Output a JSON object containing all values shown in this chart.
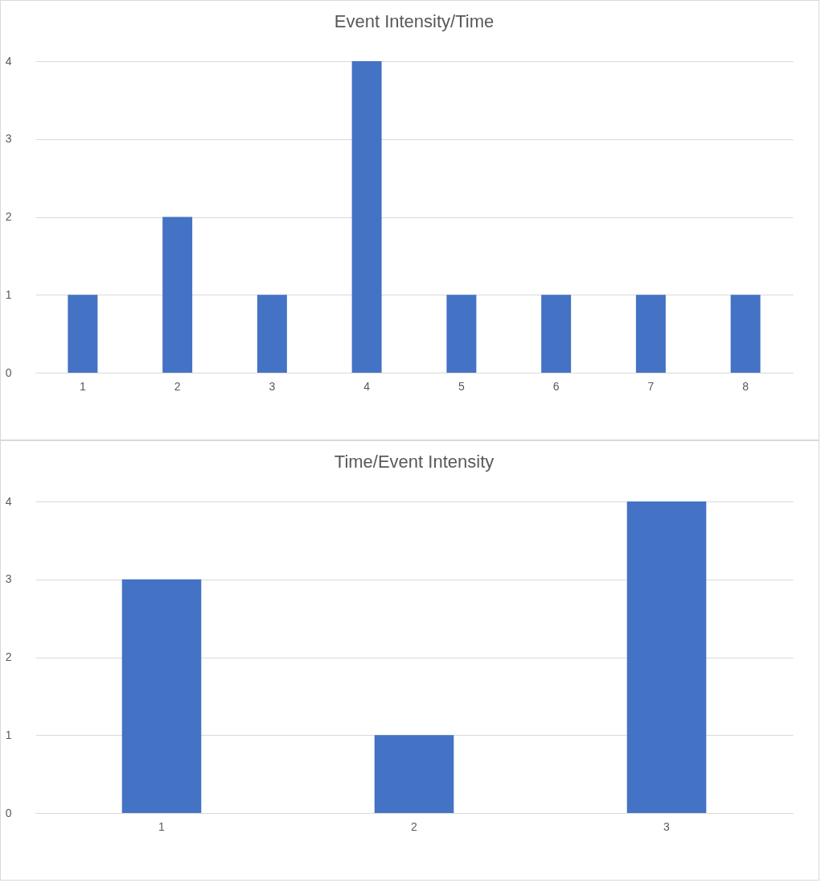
{
  "chart_data": [
    {
      "type": "bar",
      "title": "Event Intensity/Time",
      "categories": [
        "1",
        "2",
        "3",
        "4",
        "5",
        "6",
        "7",
        "8"
      ],
      "values": [
        1,
        2,
        1,
        4,
        1,
        1,
        1,
        1
      ],
      "color": "#4472c4",
      "ylim": [
        0,
        4
      ],
      "yticks": [
        0,
        1,
        2,
        3,
        4
      ],
      "grid": "y"
    },
    {
      "type": "bar",
      "title": "Time/Event Intensity",
      "categories": [
        "1",
        "2",
        "3"
      ],
      "values": [
        3,
        1,
        4
      ],
      "color": "#4472c4",
      "ylim": [
        0,
        4
      ],
      "yticks": [
        0,
        1,
        2,
        3,
        4
      ],
      "grid": "y"
    }
  ]
}
